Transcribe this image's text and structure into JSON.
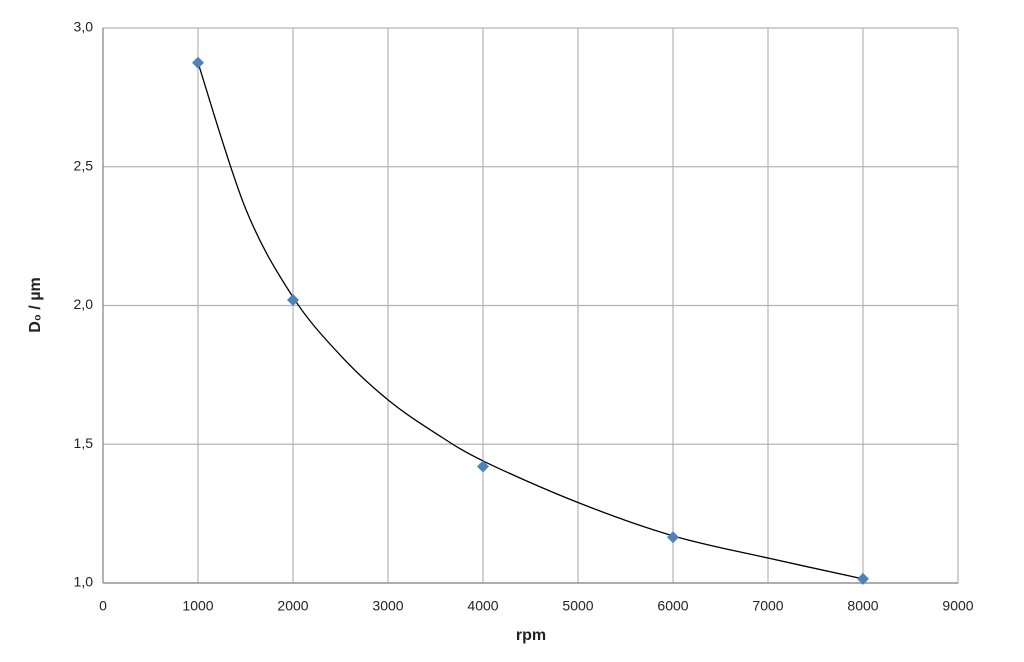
{
  "chart_data": {
    "type": "scatter",
    "xlabel": "rpm",
    "ylabel": "D₀ / µm",
    "xlim": [
      0,
      9000
    ],
    "xticks": [
      0,
      1000,
      2000,
      3000,
      4000,
      5000,
      6000,
      7000,
      8000,
      9000
    ],
    "ylim": [
      1.0,
      3.0
    ],
    "yticks": [
      {
        "value": 1.0,
        "label": "1,0"
      },
      {
        "value": 1.5,
        "label": "1,5"
      },
      {
        "value": 2.0,
        "label": "2,0"
      },
      {
        "value": 2.5,
        "label": "2,5"
      },
      {
        "value": 3.0,
        "label": "3,0"
      }
    ],
    "grid": true,
    "series": [
      {
        "color": "#4f81bd",
        "marker": "diamond",
        "x": [
          1000,
          2000,
          4000,
          6000,
          8000
        ],
        "values": [
          2.875,
          2.02,
          1.42,
          1.165,
          1.015
        ]
      },
      {
        "color": "#000000",
        "marker": "none",
        "x": [
          1000,
          1500,
          2000,
          2500,
          3000,
          3500,
          4000,
          5000,
          6000,
          7000,
          8000
        ],
        "values": [
          2.875,
          2.35,
          2.03,
          1.82,
          1.66,
          1.54,
          1.44,
          1.29,
          1.17,
          1.09,
          1.015
        ]
      }
    ]
  }
}
